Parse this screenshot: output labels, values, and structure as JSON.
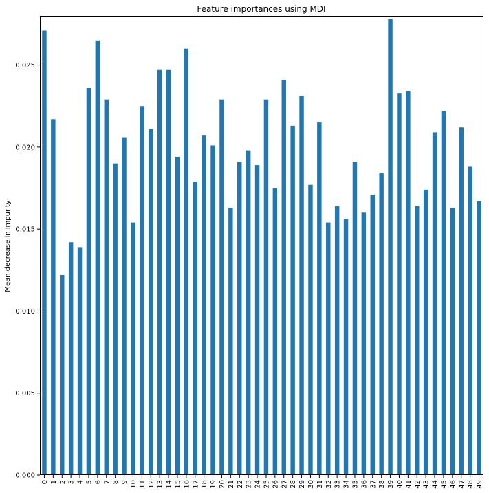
{
  "chart_data": {
    "type": "bar",
    "title": "Feature importances using MDI",
    "xlabel": "",
    "ylabel": "Mean decrease in impurity",
    "ylim": [
      0,
      0.028
    ],
    "yticks": [
      "0.000",
      "0.005",
      "0.010",
      "0.015",
      "0.020",
      "0.025"
    ],
    "categories": [
      "0",
      "1",
      "2",
      "3",
      "4",
      "5",
      "6",
      "7",
      "8",
      "9",
      "10",
      "11",
      "12",
      "13",
      "14",
      "15",
      "16",
      "17",
      "18",
      "19",
      "20",
      "21",
      "22",
      "23",
      "24",
      "25",
      "26",
      "27",
      "28",
      "29",
      "30",
      "31",
      "32",
      "33",
      "34",
      "35",
      "36",
      "37",
      "38",
      "39",
      "40",
      "41",
      "42",
      "43",
      "44",
      "45",
      "46",
      "47",
      "48",
      "49"
    ],
    "values": [
      0.0271,
      0.0217,
      0.0122,
      0.0142,
      0.0139,
      0.0236,
      0.0265,
      0.0229,
      0.019,
      0.0206,
      0.0154,
      0.0225,
      0.0211,
      0.0247,
      0.0247,
      0.0194,
      0.026,
      0.0179,
      0.0207,
      0.0201,
      0.0229,
      0.0163,
      0.0191,
      0.0198,
      0.0189,
      0.0229,
      0.0175,
      0.0241,
      0.0213,
      0.0231,
      0.0177,
      0.0215,
      0.0154,
      0.0164,
      0.0156,
      0.0191,
      0.016,
      0.0171,
      0.0184,
      0.0278,
      0.0233,
      0.0234,
      0.0164,
      0.0174,
      0.0209,
      0.0222,
      0.0163,
      0.0212,
      0.0188,
      0.0167
    ],
    "bar_color": "#1f77b4",
    "grid": false,
    "legend": false
  }
}
